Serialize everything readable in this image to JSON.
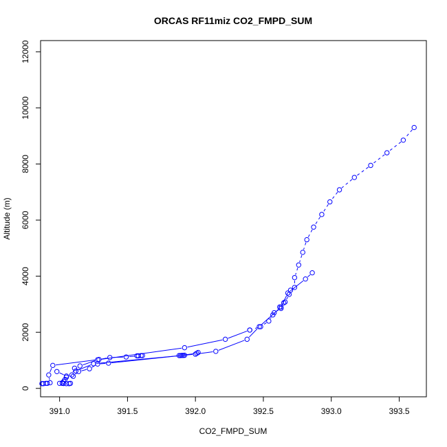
{
  "chart_data": {
    "type": "scatter",
    "title": "ORCAS RF11miz CO2_FMPD_SUM",
    "xlabel": "CO2_FMPD_SUM",
    "ylabel": "Altitude (m)",
    "xlim": [
      390.86,
      393.7
    ],
    "ylim": [
      -300,
      12400
    ],
    "xticks": [
      "391.0",
      "391.5",
      "392.0",
      "392.5",
      "393.0",
      "393.5"
    ],
    "yticks": [
      "0",
      "2000",
      "4000",
      "6000",
      "8000",
      "10000",
      "12000"
    ],
    "grid": false,
    "legend": "none",
    "colors": {
      "series": "#0000ff"
    },
    "series": [
      {
        "line_style": "dashed",
        "points": [
          [
            393.61,
            9300
          ],
          [
            393.53,
            8850
          ],
          [
            393.41,
            8400
          ],
          [
            393.29,
            7950
          ],
          [
            393.17,
            7520
          ],
          [
            393.06,
            7080
          ],
          [
            392.99,
            6650
          ],
          [
            392.93,
            6200
          ],
          [
            392.87,
            5750
          ],
          [
            392.82,
            5300
          ],
          [
            392.79,
            4850
          ],
          [
            392.76,
            4400
          ],
          [
            392.73,
            3950
          ],
          [
            392.73,
            3600
          ],
          [
            392.7,
            3500
          ],
          [
            392.69,
            3350
          ],
          [
            392.66,
            3080
          ],
          [
            392.65,
            3050
          ],
          [
            392.62,
            2900
          ],
          [
            392.63,
            2850
          ],
          [
            392.58,
            2700
          ],
          [
            392.57,
            2620
          ],
          [
            392.54,
            2400
          ],
          [
            392.48,
            2200
          ],
          [
            392.4,
            2080
          ]
        ]
      },
      {
        "line_style": "solid",
        "points": [
          [
            392.4,
            2080
          ],
          [
            392.22,
            1750
          ],
          [
            391.92,
            1450
          ],
          [
            391.28,
            1020
          ],
          [
            391.15,
            800
          ],
          [
            391.11,
            720
          ],
          [
            391.09,
            480
          ],
          [
            391.05,
            400
          ],
          [
            391.04,
            320
          ],
          [
            391.03,
            250
          ],
          [
            391.02,
            200
          ],
          [
            391.0,
            180
          ],
          [
            391.02,
            180
          ],
          [
            391.05,
            170
          ],
          [
            391.03,
            175
          ],
          [
            391.07,
            170
          ],
          [
            391.08,
            180
          ]
        ]
      },
      {
        "line_style": "solid",
        "points": [
          [
            390.88,
            170
          ],
          [
            390.87,
            170
          ],
          [
            390.9,
            180
          ],
          [
            390.91,
            180
          ],
          [
            390.93,
            200
          ],
          [
            390.92,
            480
          ],
          [
            390.95,
            820
          ],
          [
            391.29,
            1030
          ],
          [
            391.37,
            1100
          ],
          [
            391.49,
            1120
          ],
          [
            391.58,
            1160
          ],
          [
            391.61,
            1170
          ],
          [
            391.57,
            1160
          ],
          [
            391.6,
            1170
          ]
        ]
      },
      {
        "line_style": "solid",
        "points": [
          [
            390.98,
            600
          ],
          [
            391.05,
            440
          ],
          [
            391.1,
            430
          ],
          [
            391.14,
            600
          ],
          [
            391.22,
            700
          ],
          [
            391.28,
            870
          ],
          [
            391.36,
            900
          ],
          [
            391.89,
            1170
          ],
          [
            391.92,
            1180
          ],
          [
            391.9,
            1175
          ],
          [
            391.91,
            1175
          ],
          [
            391.88,
            1170
          ],
          [
            392.01,
            1250
          ],
          [
            392.02,
            1280
          ]
        ]
      },
      {
        "line_style": "solid",
        "points": [
          [
            391.12,
            620
          ],
          [
            391.25,
            880
          ],
          [
            392.0,
            1220
          ],
          [
            392.15,
            1320
          ],
          [
            392.38,
            1750
          ],
          [
            392.47,
            2200
          ],
          [
            392.63,
            2900
          ],
          [
            392.68,
            3400
          ],
          [
            392.81,
            3900
          ],
          [
            392.86,
            4120
          ]
        ]
      }
    ]
  }
}
